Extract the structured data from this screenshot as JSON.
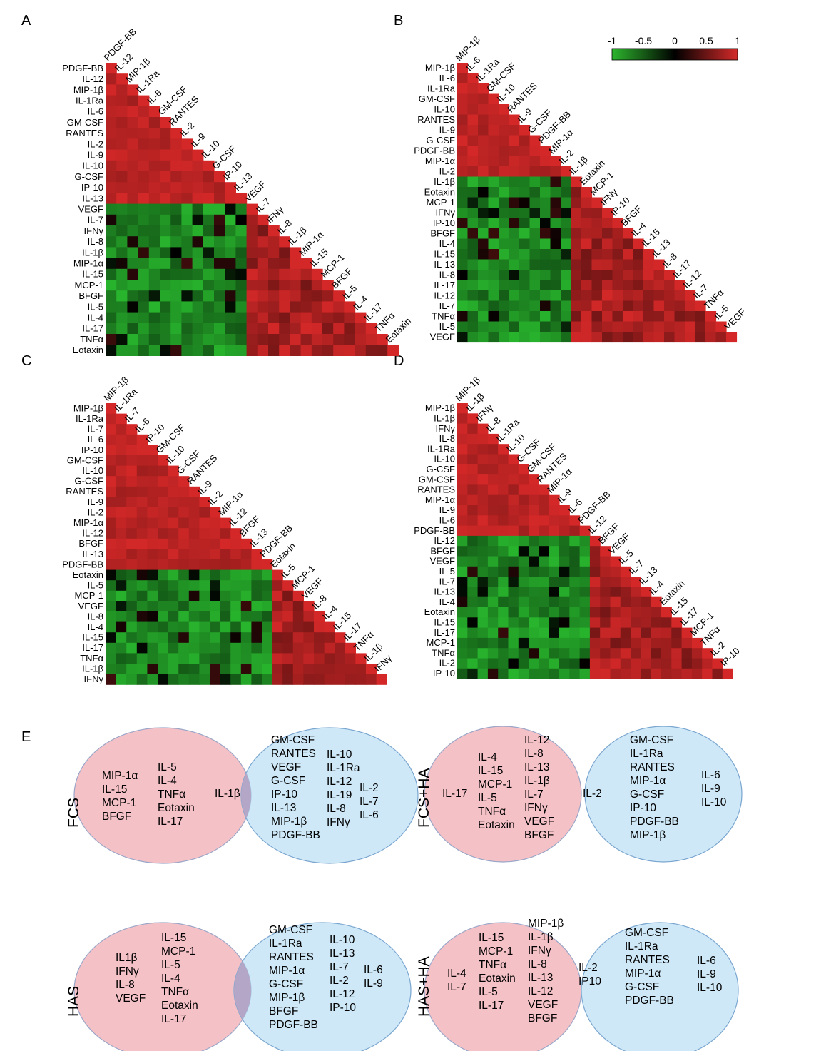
{
  "panels": {
    "A": {
      "letter": "A",
      "labels": [
        "PDGF-BB",
        "IL-12",
        "MIP-1β",
        "IL-1Ra",
        "IL-6",
        "GM-CSF",
        "RANTES",
        "IL-2",
        "IL-9",
        "IL-10",
        "G-CSF",
        "IP-10",
        "IL-13",
        "VEGF",
        "IL-7",
        "IFNγ",
        "IL-8",
        "IL-1β",
        "MIP-1α",
        "IL-15",
        "MCP-1",
        "BFGF",
        "IL-5",
        "IL-4",
        "IL-17",
        "TNFα",
        "Eotaxin"
      ]
    },
    "B": {
      "letter": "B",
      "labels": [
        "MIP-1β",
        "IL-6",
        "IL-1Ra",
        "GM-CSF",
        "IL-10",
        "RANTES",
        "IL-9",
        "G-CSF",
        "PDGF-BB",
        "MIP-1α",
        "IL-2",
        "IL-1β",
        "Eotaxin",
        "MCP-1",
        "IFNγ",
        "IP-10",
        "BFGF",
        "IL-4",
        "IL-15",
        "IL-13",
        "IL-8",
        "IL-17",
        "IL-12",
        "IL-7",
        "TNFα",
        "IL-5",
        "VEGF"
      ]
    },
    "C": {
      "letter": "C",
      "labels": [
        "MIP-1β",
        "IL-1Ra",
        "IL-7",
        "IL-6",
        "IP-10",
        "GM-CSF",
        "IL-10",
        "G-CSF",
        "RANTES",
        "IL-9",
        "IL-2",
        "MIP-1α",
        "IL-12",
        "BFGF",
        "IL-13",
        "PDGF-BB",
        "Eotaxin",
        "IL-5",
        "MCP-1",
        "VEGF",
        "IL-8",
        "IL-4",
        "IL-15",
        "IL-17",
        "TNFα",
        "IL-1β",
        "IFNγ"
      ]
    },
    "D": {
      "letter": "D",
      "labels": [
        "MIP-1β",
        "IL-1β",
        "IFNγ",
        "IL-8",
        "IL-1Ra",
        "IL-10",
        "G-CSF",
        "GM-CSF",
        "RANTES",
        "MIP-1α",
        "IL-9",
        "IL-6",
        "PDGF-BB",
        "IL-12",
        "BFGF",
        "VEGF",
        "IL-5",
        "IL-7",
        "IL-13",
        "IL-4",
        "Eotaxin",
        "IL-15",
        "IL-17",
        "MCP-1",
        "TNFα",
        "IL-2",
        "IP-10"
      ]
    }
  },
  "colorbar": {
    "ticks": [
      "-1",
      "-0.5",
      "0",
      "0.5",
      "1"
    ],
    "low_color": "#2db52d",
    "mid_color": "#000000",
    "high_color": "#d42a2a"
  },
  "venn_panel_letter": "E",
  "venns": [
    {
      "label": "FCS",
      "left": [
        "MIP-1α",
        "IL-15",
        "MCP-1",
        "BFGF"
      ],
      "left2": [
        "IL-5",
        "IL-4",
        "TNFα",
        "Eotaxin",
        "IL-17"
      ],
      "center": [
        "IL-1β"
      ],
      "right": [
        "GM-CSF",
        "RANTES",
        "VEGF",
        "G-CSF",
        "IP-10",
        "IL-13",
        "MIP-1β",
        "PDGF-BB"
      ],
      "right2": [
        "IL-10",
        "IL-1Ra",
        "IL-12",
        "IL-19",
        "IL-8",
        "IFNγ"
      ],
      "right3": [
        "IL-2",
        "IL-7",
        "IL-6"
      ]
    },
    {
      "label": "FCS+HA",
      "left": [
        "IL-17"
      ],
      "left2": [
        "IL-4",
        "IL-15",
        "MCP-1",
        "IL-5",
        "TNFα",
        "Eotaxin"
      ],
      "left3": [
        "IL-12",
        "IL-8",
        "IL-13",
        "IL-1β",
        "IL-7",
        "IFNγ",
        "VEGF",
        "BFGF"
      ],
      "center": [
        "IL-2"
      ],
      "right": [
        "GM-CSF",
        "IL-1Ra",
        "RANTES",
        "MIP-1α",
        "G-CSF",
        "IP-10",
        "PDGF-BB",
        "MIP-1β"
      ],
      "right2": [
        "IL-6",
        "IL-9",
        "IL-10"
      ]
    },
    {
      "label": "HAS",
      "left": [
        "IL1β",
        "IFNγ",
        "IL-8",
        "VEGF"
      ],
      "left2": [
        "IL-15",
        "MCP-1",
        "IL-5",
        "IL-4",
        "TNFα",
        "Eotaxin",
        "IL-17"
      ],
      "center": [],
      "right": [
        "GM-CSF",
        "IL-1Ra",
        "RANTES",
        "MIP-1α",
        "G-CSF",
        "MIP-1β",
        "BFGF",
        "PDGF-BB"
      ],
      "right2": [
        "IL-10",
        "IL-13",
        "IL-7",
        "IL-2",
        "IL-12",
        "IP-10"
      ],
      "right3": [
        "IL-6",
        "IL-9"
      ]
    },
    {
      "label": "HAS+HA",
      "left": [
        "IL-4",
        "IL-7"
      ],
      "left2": [
        "IL-15",
        "MCP-1",
        "TNFα",
        "Eotaxin",
        "IL-5",
        "IL-17"
      ],
      "left3": [
        "MIP-1β",
        "IL-1β",
        "IFNγ",
        "IL-8",
        "IL-13",
        "IL-12",
        "VEGF",
        "BFGF"
      ],
      "center": [
        "IL-2",
        "IP10"
      ],
      "right": [
        "GM-CSF",
        "IL-1Ra",
        "RANTES",
        "MIP-1α",
        "G-CSF",
        "PDGF-BB"
      ],
      "right2": [
        "IL-6",
        "IL-9",
        "IL-10"
      ]
    }
  ]
}
